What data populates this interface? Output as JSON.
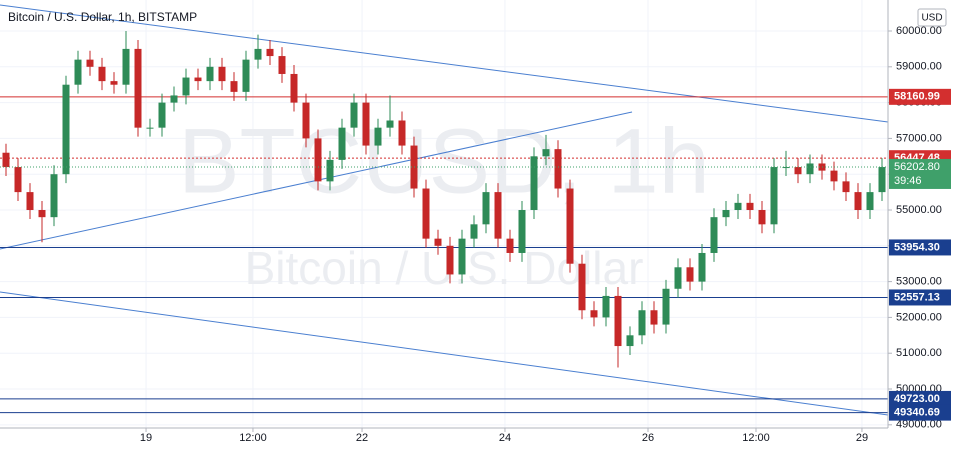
{
  "header": {
    "symbol": "Bitcoin / U.S. Dollar, 1h, BITSTAMP",
    "currency": "USD"
  },
  "chart_data": {
    "type": "candlestick",
    "watermark": [
      "BTCUSD, 1h",
      "Bitcoin / U.S. Dollar"
    ],
    "up_color": "#2e8b57",
    "down_color": "#c62828",
    "grid": true,
    "open": [
      56600,
      56200,
      55500,
      55000,
      54800,
      56000,
      58500,
      59200,
      59000,
      58600,
      58500,
      59500,
      57300,
      57300,
      58000,
      58200,
      58700,
      58600,
      59000,
      58600,
      58300,
      59200,
      59500,
      59300,
      58800,
      58000,
      57000,
      55800,
      56400,
      57300,
      58000,
      56800,
      57300,
      57500,
      56800,
      55600,
      54200,
      54000,
      53200,
      54200,
      54600,
      55500,
      54200,
      53800,
      55000,
      56500,
      56700,
      55600,
      53500,
      52200,
      52000,
      52600,
      51200,
      51500,
      52200,
      51800,
      52800,
      53400,
      53000,
      53800,
      54800,
      55000,
      55200,
      55000,
      54600,
      56200,
      56200,
      56000,
      56300,
      56100,
      55800,
      55500,
      55000,
      55500
    ],
    "high": [
      56850,
      56450,
      55750,
      55250,
      56250,
      58750,
      59450,
      59450,
      59250,
      58850,
      60000,
      59750,
      57550,
      58250,
      58450,
      58950,
      58950,
      59250,
      59250,
      58850,
      59450,
      59900,
      59750,
      59550,
      59050,
      58250,
      57250,
      56650,
      57550,
      58250,
      58250,
      57550,
      58200,
      57750,
      57050,
      55850,
      54450,
      54250,
      54450,
      54850,
      55750,
      55750,
      54450,
      55250,
      56750,
      57100,
      56950,
      55850,
      53750,
      52450,
      52850,
      52850,
      51750,
      52450,
      52450,
      53050,
      53650,
      53650,
      54050,
      55050,
      55250,
      55450,
      55450,
      55250,
      56450,
      56650,
      56450,
      56550,
      56550,
      56350,
      56050,
      55750,
      55750,
      56450
    ],
    "low": [
      55950,
      55250,
      54750,
      54100,
      54550,
      55750,
      58250,
      58750,
      58350,
      58250,
      58250,
      57050,
      57050,
      57050,
      57750,
      57950,
      58350,
      58350,
      58350,
      58050,
      58050,
      58950,
      59050,
      58550,
      57750,
      56750,
      55550,
      55550,
      56150,
      57050,
      56550,
      56550,
      57050,
      56550,
      55350,
      53950,
      53750,
      52950,
      52950,
      53950,
      54350,
      53950,
      53550,
      53550,
      54750,
      56250,
      55350,
      53250,
      51950,
      51750,
      51750,
      50600,
      50950,
      51250,
      51550,
      51550,
      52550,
      52750,
      52750,
      53550,
      54550,
      54750,
      54750,
      54350,
      54350,
      55950,
      55750,
      55750,
      55850,
      55550,
      55250,
      54750,
      54750,
      55250
    ],
    "close": [
      56200,
      55500,
      55000,
      54800,
      56000,
      58500,
      59200,
      59000,
      58600,
      58500,
      59500,
      57300,
      57300,
      58000,
      58200,
      58700,
      58600,
      59000,
      58600,
      58300,
      59200,
      59500,
      59300,
      58800,
      58000,
      57000,
      55800,
      56400,
      57300,
      58000,
      56800,
      57300,
      57500,
      56800,
      55600,
      54200,
      54000,
      53200,
      54200,
      54600,
      55500,
      54200,
      53800,
      55000,
      56500,
      56700,
      55600,
      53500,
      52200,
      52000,
      52600,
      51200,
      51500,
      52200,
      51800,
      52800,
      53400,
      53000,
      53800,
      54800,
      55000,
      55200,
      55000,
      54600,
      56200,
      56200,
      56000,
      56300,
      56100,
      55800,
      55500,
      55000,
      55500,
      56200
    ],
    "xlim": [
      -0.5,
      73.5
    ],
    "xticks": [
      {
        "value": 11.67,
        "label": "19"
      },
      {
        "value": 20.58,
        "label": "12:00"
      },
      {
        "value": 29.67,
        "label": "22"
      },
      {
        "value": 41.58,
        "label": "24"
      },
      {
        "value": 53.5,
        "label": "26"
      },
      {
        "value": 62.5,
        "label": "12:00"
      },
      {
        "value": 71.33,
        "label": "29"
      }
    ],
    "ylim": [
      48911,
      60866
    ],
    "yticks": [
      {
        "value": 49000,
        "label": "49000.00"
      },
      {
        "value": 50000,
        "label": "50000.00"
      },
      {
        "value": 51000,
        "label": "51000.00"
      },
      {
        "value": 52000,
        "label": "52000.00"
      },
      {
        "value": 53000,
        "label": "53000.00"
      },
      {
        "value": 54000,
        "label": "54000.00"
      },
      {
        "value": 55000,
        "label": "55000.00"
      },
      {
        "value": 56000,
        "label": "56000.00"
      },
      {
        "value": 57000,
        "label": "57000.00"
      },
      {
        "value": 58000,
        "label": "58000.00"
      },
      {
        "value": 59000,
        "label": "59000.00"
      },
      {
        "value": 60000,
        "label": "60000.00"
      }
    ],
    "levels": [
      {
        "value": 58160.99,
        "label": "58160.99",
        "color": "#d32f2f",
        "style": "solid"
      },
      {
        "value": 56447.48,
        "label": "56447.48",
        "color": "#d32f2f",
        "style": "dotted"
      },
      {
        "value": 53954.3,
        "label": "53954.30",
        "color": "#1a3f8f",
        "style": "solid"
      },
      {
        "value": 52557.13,
        "label": "52557.13",
        "color": "#1a3f8f",
        "style": "solid"
      },
      {
        "value": 49723.0,
        "label": "49723.00",
        "color": "#1a3f8f",
        "style": "solid"
      },
      {
        "value": 49340.69,
        "label": "49340.69",
        "color": "#1a3f8f",
        "style": "solid"
      }
    ],
    "last_price": {
      "value": 56202.8,
      "label": "56202.80",
      "countdown": "39:46",
      "color": "#3fa06a"
    },
    "trendline_color": "#4a7fd0",
    "trendlines": [
      {
        "x": [
          -0.5,
          73.5
        ],
        "y": [
          60726,
          57458
        ]
      },
      {
        "x": [
          -0.5,
          52.17
        ],
        "y": [
          53911,
          57737
        ]
      },
      {
        "x": [
          -0.5,
          73.5
        ],
        "y": [
          52709,
          49274
        ]
      }
    ]
  }
}
